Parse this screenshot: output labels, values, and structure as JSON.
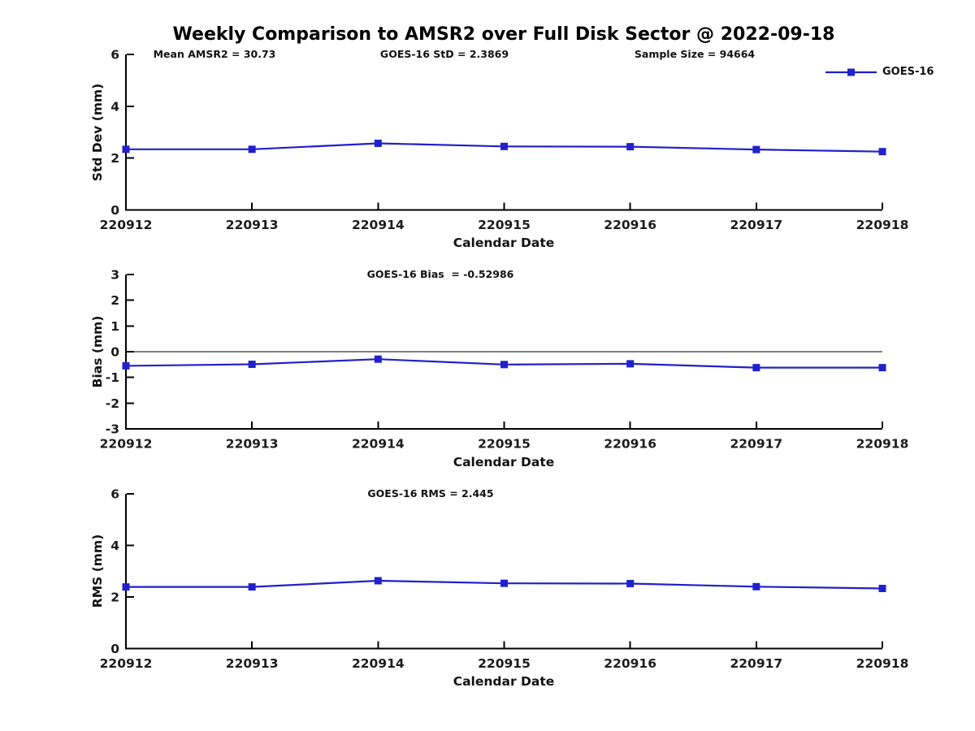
{
  "figure": {
    "title": "Weekly Comparison to AMSR2 over Full Disk Sector @ 2022-09-18",
    "legend": {
      "label": "GOES-16",
      "position": "top-right"
    },
    "accent_color": "#2020cc",
    "axis_color": "#000000",
    "text_color": "#111111"
  },
  "chart_data": [
    {
      "type": "line",
      "ylabel": "Std Dev (mm)",
      "xlabel": "Calendar Date",
      "categories": [
        "220912",
        "220913",
        "220914",
        "220915",
        "220916",
        "220917",
        "220918"
      ],
      "series": [
        {
          "name": "GOES-16",
          "values": [
            2.34,
            2.34,
            2.57,
            2.45,
            2.44,
            2.33,
            2.25
          ]
        }
      ],
      "ylim": [
        0,
        6
      ],
      "yticks": [
        0,
        2,
        4,
        6
      ],
      "zero_line": false,
      "grid": false,
      "annotations": [
        {
          "text": "Mean AMSR2 = 30.73"
        },
        {
          "text": "GOES-16 StD = 2.3869"
        },
        {
          "text": "Sample Size = 94664"
        }
      ]
    },
    {
      "type": "line",
      "ylabel": "Bias (mm)",
      "xlabel": "Calendar Date",
      "categories": [
        "220912",
        "220913",
        "220914",
        "220915",
        "220916",
        "220917",
        "220918"
      ],
      "series": [
        {
          "name": "GOES-16",
          "values": [
            -0.55,
            -0.49,
            -0.29,
            -0.5,
            -0.47,
            -0.62,
            -0.62
          ]
        }
      ],
      "ylim": [
        -3,
        3
      ],
      "yticks": [
        -3,
        -2,
        -1,
        0,
        1,
        2,
        3
      ],
      "zero_line": true,
      "grid": false,
      "annotations": [
        {
          "text": "GOES-16 Bias  = -0.52986"
        }
      ]
    },
    {
      "type": "line",
      "ylabel": "RMS (mm)",
      "xlabel": "Calendar Date",
      "categories": [
        "220912",
        "220913",
        "220914",
        "220915",
        "220916",
        "220917",
        "220918"
      ],
      "series": [
        {
          "name": "GOES-16",
          "values": [
            2.39,
            2.39,
            2.63,
            2.53,
            2.52,
            2.4,
            2.33
          ]
        }
      ],
      "ylim": [
        0,
        6
      ],
      "yticks": [
        0,
        2,
        4,
        6
      ],
      "zero_line": false,
      "grid": false,
      "annotations": [
        {
          "text": "GOES-16 RMS = 2.445"
        }
      ]
    }
  ]
}
